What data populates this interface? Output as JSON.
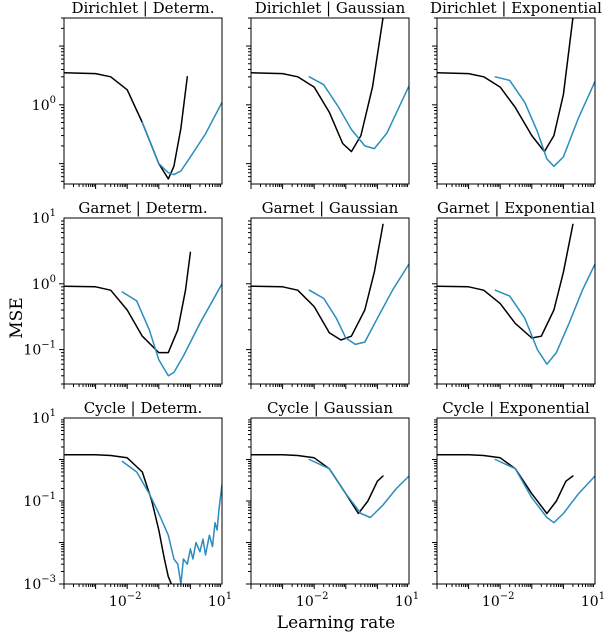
{
  "figure": {
    "xlabel": "Learning rate",
    "ylabel": "MSE"
  },
  "colors": {
    "black_series": "#000000",
    "blue_series": "#2b8cbe"
  },
  "chart_data": [
    {
      "type": "line",
      "title": "Dirichlet | Determ.",
      "xscale": "log",
      "yscale": "log",
      "xlim": [
        0.0001,
        10
      ],
      "ylim": [
        0.045,
        30
      ],
      "xticks": [],
      "yticks": [
        {
          "v": 1,
          "label": "1",
          "exp": "0"
        }
      ],
      "series": [
        {
          "color": "black",
          "points": [
            [
              0.0001,
              3.5
            ],
            [
              0.001,
              3.4
            ],
            [
              0.003,
              3.0
            ],
            [
              0.01,
              1.8
            ],
            [
              0.03,
              0.5
            ],
            [
              0.1,
              0.1
            ],
            [
              0.2,
              0.055
            ],
            [
              0.3,
              0.09
            ],
            [
              0.5,
              0.4
            ],
            [
              0.8,
              3.0
            ]
          ]
        },
        {
          "color": "blue",
          "points": [
            [
              0.03,
              0.5
            ],
            [
              0.1,
              0.1
            ],
            [
              0.2,
              0.07
            ],
            [
              0.3,
              0.065
            ],
            [
              0.5,
              0.075
            ],
            [
              1,
              0.13
            ],
            [
              3,
              0.32
            ],
            [
              10,
              1.1
            ]
          ]
        }
      ]
    },
    {
      "type": "line",
      "title": "Dirichlet | Gaussian",
      "xscale": "log",
      "yscale": "log",
      "xlim": [
        0.0001,
        10
      ],
      "ylim": [
        0.045,
        30
      ],
      "xticks": [],
      "yticks": [],
      "series": [
        {
          "color": "black",
          "points": [
            [
              0.0001,
              3.5
            ],
            [
              0.001,
              3.4
            ],
            [
              0.003,
              3.0
            ],
            [
              0.01,
              2.0
            ],
            [
              0.03,
              0.75
            ],
            [
              0.08,
              0.22
            ],
            [
              0.15,
              0.16
            ],
            [
              0.3,
              0.3
            ],
            [
              0.7,
              2.0
            ],
            [
              1.5,
              30
            ]
          ]
        },
        {
          "color": "blue",
          "points": [
            [
              0.007,
              3.0
            ],
            [
              0.02,
              2.2
            ],
            [
              0.06,
              0.9
            ],
            [
              0.15,
              0.38
            ],
            [
              0.4,
              0.2
            ],
            [
              0.8,
              0.18
            ],
            [
              2,
              0.33
            ],
            [
              10,
              2.1
            ]
          ]
        }
      ]
    },
    {
      "type": "line",
      "title": "Dirichlet | Exponential",
      "xscale": "log",
      "yscale": "log",
      "xlim": [
        0.0001,
        10
      ],
      "ylim": [
        0.045,
        30
      ],
      "xticks": [],
      "yticks": [],
      "series": [
        {
          "color": "black",
          "points": [
            [
              0.0001,
              3.5
            ],
            [
              0.001,
              3.4
            ],
            [
              0.003,
              3.0
            ],
            [
              0.01,
              2.0
            ],
            [
              0.03,
              0.9
            ],
            [
              0.1,
              0.3
            ],
            [
              0.25,
              0.16
            ],
            [
              0.5,
              0.3
            ],
            [
              1,
              1.5
            ],
            [
              2,
              30
            ]
          ]
        },
        {
          "color": "blue",
          "points": [
            [
              0.007,
              3.0
            ],
            [
              0.02,
              2.6
            ],
            [
              0.06,
              1.1
            ],
            [
              0.15,
              0.35
            ],
            [
              0.3,
              0.12
            ],
            [
              0.5,
              0.09
            ],
            [
              1,
              0.13
            ],
            [
              3,
              0.6
            ],
            [
              10,
              2.5
            ]
          ]
        }
      ]
    },
    {
      "type": "line",
      "title": "Garnet | Determ.",
      "xscale": "log",
      "yscale": "log",
      "xlim": [
        0.0001,
        10
      ],
      "ylim": [
        0.03,
        10
      ],
      "xticks": [],
      "yticks": [
        {
          "v": 10,
          "label": "10",
          "exp": "1"
        },
        {
          "v": 1,
          "label": "10",
          "exp": "0"
        },
        {
          "v": 0.1,
          "label": "10",
          "exp": "−1"
        }
      ],
      "series": [
        {
          "color": "black",
          "points": [
            [
              0.0001,
              0.92
            ],
            [
              0.001,
              0.9
            ],
            [
              0.003,
              0.8
            ],
            [
              0.01,
              0.4
            ],
            [
              0.03,
              0.16
            ],
            [
              0.1,
              0.09
            ],
            [
              0.2,
              0.09
            ],
            [
              0.4,
              0.2
            ],
            [
              0.7,
              0.8
            ],
            [
              1,
              3.0
            ]
          ]
        },
        {
          "color": "blue",
          "points": [
            [
              0.007,
              0.75
            ],
            [
              0.02,
              0.55
            ],
            [
              0.05,
              0.2
            ],
            [
              0.1,
              0.07
            ],
            [
              0.2,
              0.04
            ],
            [
              0.3,
              0.045
            ],
            [
              0.6,
              0.08
            ],
            [
              2,
              0.25
            ],
            [
              10,
              1.0
            ]
          ]
        }
      ]
    },
    {
      "type": "line",
      "title": "Garnet | Gaussian",
      "xscale": "log",
      "yscale": "log",
      "xlim": [
        0.0001,
        10
      ],
      "ylim": [
        0.03,
        10
      ],
      "xticks": [],
      "yticks": [],
      "series": [
        {
          "color": "black",
          "points": [
            [
              0.0001,
              0.92
            ],
            [
              0.001,
              0.9
            ],
            [
              0.003,
              0.8
            ],
            [
              0.01,
              0.45
            ],
            [
              0.03,
              0.18
            ],
            [
              0.07,
              0.14
            ],
            [
              0.15,
              0.16
            ],
            [
              0.4,
              0.4
            ],
            [
              0.8,
              1.5
            ],
            [
              1.5,
              8
            ]
          ]
        },
        {
          "color": "blue",
          "points": [
            [
              0.007,
              0.8
            ],
            [
              0.02,
              0.6
            ],
            [
              0.05,
              0.3
            ],
            [
              0.1,
              0.15
            ],
            [
              0.2,
              0.12
            ],
            [
              0.4,
              0.13
            ],
            [
              1,
              0.3
            ],
            [
              3,
              0.8
            ],
            [
              10,
              2.0
            ]
          ]
        }
      ]
    },
    {
      "type": "line",
      "title": "Garnet | Exponential",
      "xscale": "log",
      "yscale": "log",
      "xlim": [
        0.0001,
        10
      ],
      "ylim": [
        0.03,
        10
      ],
      "xticks": [],
      "yticks": [],
      "series": [
        {
          "color": "black",
          "points": [
            [
              0.0001,
              0.92
            ],
            [
              0.001,
              0.9
            ],
            [
              0.003,
              0.8
            ],
            [
              0.01,
              0.5
            ],
            [
              0.03,
              0.25
            ],
            [
              0.1,
              0.15
            ],
            [
              0.2,
              0.16
            ],
            [
              0.5,
              0.4
            ],
            [
              1,
              1.5
            ],
            [
              2,
              8
            ]
          ]
        },
        {
          "color": "blue",
          "points": [
            [
              0.007,
              0.8
            ],
            [
              0.02,
              0.65
            ],
            [
              0.06,
              0.3
            ],
            [
              0.15,
              0.1
            ],
            [
              0.3,
              0.06
            ],
            [
              0.6,
              0.09
            ],
            [
              1.5,
              0.25
            ],
            [
              4,
              0.8
            ],
            [
              10,
              2.0
            ]
          ]
        }
      ]
    },
    {
      "type": "line",
      "title": "Cycle | Determ.",
      "xscale": "log",
      "yscale": "log",
      "xlim": [
        0.0001,
        10
      ],
      "ylim": [
        0.001,
        10
      ],
      "xticks": [
        {
          "v": 0.01,
          "label": "10",
          "exp": "−2"
        },
        {
          "v": 10,
          "label": "10",
          "exp": "1"
        }
      ],
      "yticks": [
        {
          "v": 10,
          "label": "10",
          "exp": "1"
        },
        {
          "v": 0.1,
          "label": "10",
          "exp": "−1"
        },
        {
          "v": 0.001,
          "label": "10",
          "exp": "−3"
        }
      ],
      "series": [
        {
          "color": "black",
          "points": [
            [
              0.0001,
              1.3
            ],
            [
              0.001,
              1.3
            ],
            [
              0.003,
              1.25
            ],
            [
              0.01,
              1.1
            ],
            [
              0.03,
              0.5
            ],
            [
              0.06,
              0.1
            ],
            [
              0.1,
              0.02
            ],
            [
              0.15,
              0.004
            ],
            [
              0.2,
              0.0015
            ],
            [
              0.25,
              0.001
            ]
          ]
        },
        {
          "color": "blue",
          "points": [
            [
              0.007,
              0.9
            ],
            [
              0.02,
              0.5
            ],
            [
              0.05,
              0.15
            ],
            [
              0.1,
              0.05
            ],
            [
              0.2,
              0.015
            ],
            [
              0.3,
              0.004
            ],
            [
              0.4,
              0.003
            ],
            [
              0.5,
              0.001
            ],
            [
              0.6,
              0.004
            ],
            [
              0.8,
              0.003
            ],
            [
              1,
              0.007
            ],
            [
              1.2,
              0.004
            ],
            [
              1.5,
              0.01
            ],
            [
              2,
              0.006
            ],
            [
              2.5,
              0.012
            ],
            [
              3,
              0.005
            ],
            [
              4,
              0.015
            ],
            [
              5,
              0.008
            ],
            [
              6,
              0.03
            ],
            [
              7,
              0.02
            ],
            [
              8,
              0.06
            ],
            [
              10,
              0.25
            ]
          ]
        }
      ]
    },
    {
      "type": "line",
      "title": "Cycle | Gaussian",
      "xscale": "log",
      "yscale": "log",
      "xlim": [
        0.0001,
        10
      ],
      "ylim": [
        0.001,
        10
      ],
      "xticks": [
        {
          "v": 0.01,
          "label": "10",
          "exp": "−2"
        },
        {
          "v": 10,
          "label": "10",
          "exp": "1"
        }
      ],
      "yticks": [],
      "series": [
        {
          "color": "black",
          "points": [
            [
              0.0001,
              1.3
            ],
            [
              0.001,
              1.3
            ],
            [
              0.003,
              1.25
            ],
            [
              0.01,
              1.1
            ],
            [
              0.03,
              0.6
            ],
            [
              0.1,
              0.15
            ],
            [
              0.25,
              0.05
            ],
            [
              0.5,
              0.1
            ],
            [
              1,
              0.3
            ],
            [
              1.5,
              0.4
            ]
          ]
        },
        {
          "color": "blue",
          "points": [
            [
              0.007,
              1.0
            ],
            [
              0.03,
              0.6
            ],
            [
              0.1,
              0.15
            ],
            [
              0.3,
              0.05
            ],
            [
              0.6,
              0.04
            ],
            [
              1.5,
              0.08
            ],
            [
              4,
              0.2
            ],
            [
              10,
              0.4
            ]
          ]
        }
      ]
    },
    {
      "type": "line",
      "title": "Cycle | Exponential",
      "xscale": "log",
      "yscale": "log",
      "xlim": [
        0.0001,
        10
      ],
      "ylim": [
        0.001,
        10
      ],
      "xticks": [
        {
          "v": 0.01,
          "label": "10",
          "exp": "−2"
        },
        {
          "v": 10,
          "label": "10",
          "exp": "1"
        }
      ],
      "yticks": [],
      "series": [
        {
          "color": "black",
          "points": [
            [
              0.0001,
              1.3
            ],
            [
              0.001,
              1.3
            ],
            [
              0.003,
              1.25
            ],
            [
              0.01,
              1.1
            ],
            [
              0.03,
              0.6
            ],
            [
              0.1,
              0.15
            ],
            [
              0.3,
              0.05
            ],
            [
              0.6,
              0.1
            ],
            [
              1.2,
              0.3
            ],
            [
              2,
              0.4
            ]
          ]
        },
        {
          "color": "blue",
          "points": [
            [
              0.007,
              1.0
            ],
            [
              0.03,
              0.6
            ],
            [
              0.1,
              0.12
            ],
            [
              0.3,
              0.04
            ],
            [
              0.5,
              0.03
            ],
            [
              1,
              0.05
            ],
            [
              3,
              0.15
            ],
            [
              10,
              0.4
            ]
          ]
        }
      ]
    }
  ]
}
